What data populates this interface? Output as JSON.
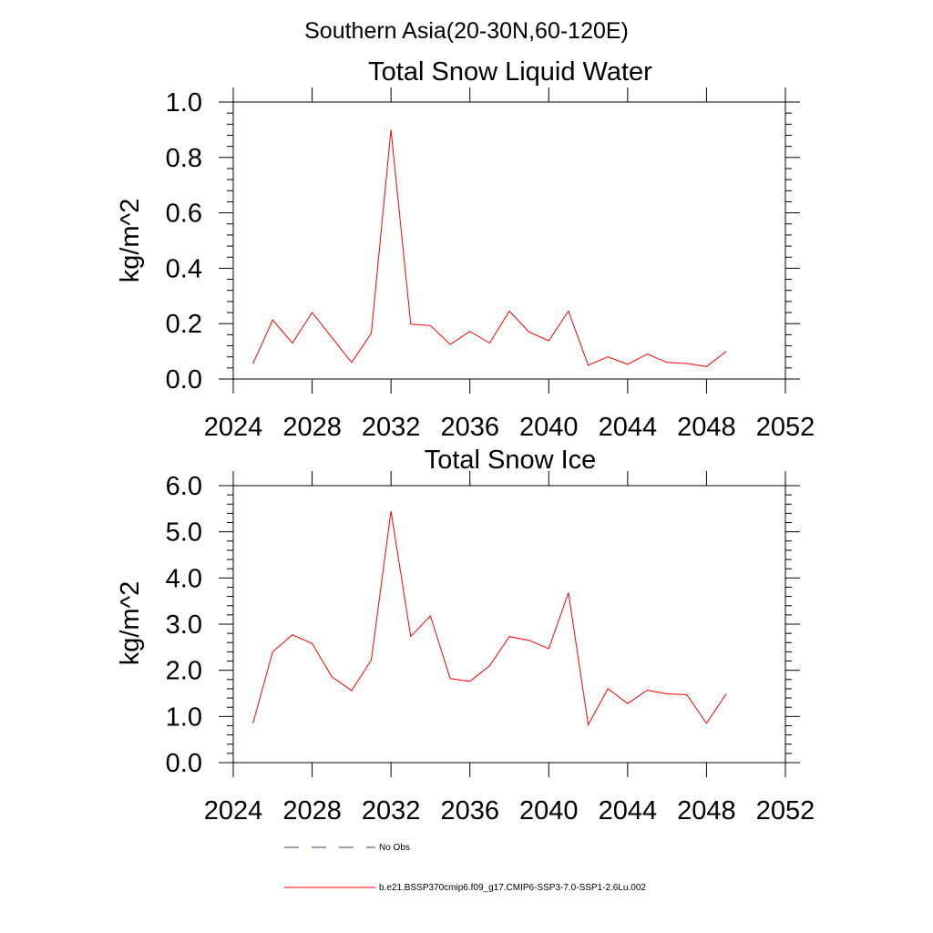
{
  "suptitle": "Southern Asia(20-30N,60-120E)",
  "chart_data": [
    {
      "type": "line",
      "title": "Total Snow Liquid Water",
      "ylabel": "kg/m^2",
      "xlabel": "",
      "xlim": [
        2024,
        2052
      ],
      "ylim": [
        0.0,
        1.0
      ],
      "xticks": [
        "2024",
        "2028",
        "2032",
        "2036",
        "2040",
        "2044",
        "2048",
        "2052"
      ],
      "yticks": [
        "0.0",
        "0.2",
        "0.4",
        "0.6",
        "0.8",
        "1.0"
      ],
      "grid": false,
      "series": [
        {
          "name": "b.e21.BSSP370cmip6.f09_g17.CMIP6-SSP3-7.0-SSP1-2.6Lu.002",
          "color": "#ff0000",
          "x": [
            2025,
            2026,
            2027,
            2028,
            2029,
            2030,
            2031,
            2032,
            2033,
            2034,
            2035,
            2036,
            2037,
            2038,
            2039,
            2040,
            2041,
            2042,
            2043,
            2044,
            2045,
            2046,
            2047,
            2048,
            2049
          ],
          "values": [
            0.055,
            0.213,
            0.13,
            0.24,
            0.15,
            0.06,
            0.165,
            0.9,
            0.198,
            0.193,
            0.125,
            0.172,
            0.13,
            0.245,
            0.17,
            0.138,
            0.245,
            0.05,
            0.08,
            0.053,
            0.09,
            0.06,
            0.056,
            0.045,
            0.1
          ]
        }
      ]
    },
    {
      "type": "line",
      "title": "Total Snow Ice",
      "ylabel": "kg/m^2",
      "xlabel": "",
      "xlim": [
        2024,
        2052
      ],
      "ylim": [
        0.0,
        6.0
      ],
      "xticks": [
        "2024",
        "2028",
        "2032",
        "2036",
        "2040",
        "2044",
        "2048",
        "2052"
      ],
      "yticks": [
        "0.0",
        "1.0",
        "2.0",
        "3.0",
        "4.0",
        "5.0",
        "6.0"
      ],
      "grid": false,
      "series": [
        {
          "name": "b.e21.BSSP370cmip6.f09_g17.CMIP6-SSP3-7.0-SSP1-2.6Lu.002",
          "color": "#ff0000",
          "x": [
            2025,
            2026,
            2027,
            2028,
            2029,
            2030,
            2031,
            2032,
            2033,
            2034,
            2035,
            2036,
            2037,
            2038,
            2039,
            2040,
            2041,
            2042,
            2043,
            2044,
            2045,
            2046,
            2047,
            2048,
            2049
          ],
          "values": [
            0.85,
            2.4,
            2.77,
            2.58,
            1.86,
            1.56,
            2.22,
            5.45,
            2.73,
            3.18,
            1.82,
            1.76,
            2.1,
            2.73,
            2.65,
            2.47,
            3.68,
            0.82,
            1.6,
            1.28,
            1.57,
            1.49,
            1.47,
            0.85,
            1.49
          ]
        }
      ]
    }
  ],
  "legend": {
    "placement": "bottom",
    "entries": [
      {
        "label": "No Obs",
        "color": "#3c3c78",
        "style": "dashed"
      },
      {
        "label": "b.e21.BSSP370cmip6.f09_g17.CMIP6-SSP3-7.0-SSP1-2.6Lu.002",
        "color": "#ff0000",
        "style": "solid"
      }
    ]
  }
}
